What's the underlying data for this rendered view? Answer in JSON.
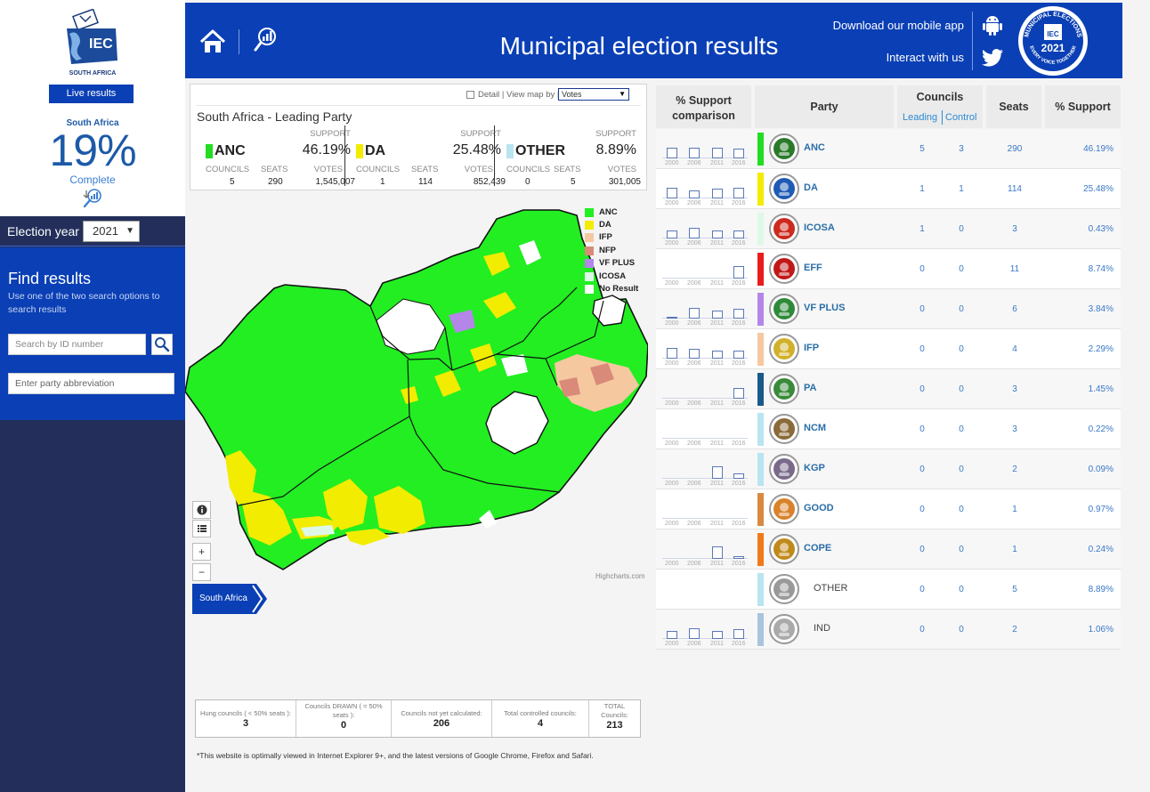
{
  "sidebar": {
    "logo_text": "IEC",
    "logo_sub": "SOUTH AFRICA",
    "live_results": "Live results",
    "region_label": "South Africa",
    "complete_pct": "19%",
    "complete_label": "Complete",
    "election_year_label": "Election year",
    "election_year": "2021",
    "find_title": "Find results",
    "find_sub": "Use one of the two search options to search results",
    "id_placeholder": "Search by ID number",
    "party_placeholder": "Enter party abbreviation"
  },
  "banner": {
    "title": "Municipal election results",
    "download_app": "Download our mobile app",
    "interact": "Interact with us",
    "badge_top": "MUNICIPAL ELECTIONS",
    "badge_year": "2021",
    "badge_bottom": "EVERY VOICE TOGETHER"
  },
  "leading_panel": {
    "detail_label": "Detail | View map by |",
    "view_by": "Votes",
    "title": "South Africa - Leading Party",
    "support_label": "SUPPORT",
    "councils_label": "COUNCILS",
    "seats_label": "SEATS",
    "votes_label": "VOTES",
    "cards": [
      {
        "name": "ANC",
        "color": "#22dd22",
        "pct": "46.19%",
        "councils": "5",
        "seats": "290",
        "votes": "1,545,007"
      },
      {
        "name": "DA",
        "color": "#f2ec00",
        "pct": "25.48%",
        "councils": "1",
        "seats": "114",
        "votes": "852,439"
      },
      {
        "name": "OTHER",
        "color": "#b9e4f0",
        "pct": "8.89%",
        "councils": "0",
        "seats": "5",
        "votes": "301,005"
      }
    ]
  },
  "legend": [
    {
      "label": "ANC",
      "color": "#22ee22"
    },
    {
      "label": "DA",
      "color": "#f2ec00"
    },
    {
      "label": "IFP",
      "color": "#f5c8a0"
    },
    {
      "label": "NFP",
      "color": "#d98a78"
    },
    {
      "label": "VF PLUS",
      "color": "#b486e8"
    },
    {
      "label": "ICOSA",
      "color": "#def8e8"
    },
    {
      "label": "No Result",
      "color": "#ffffff"
    }
  ],
  "map": {
    "credit": "Highcharts.com",
    "breadcrumb": "South Africa",
    "zoom_in": "+",
    "zoom_out": "−"
  },
  "stats": {
    "hung_label": "Hung councils ( < 50% seats ):",
    "hung": "3",
    "drawn_label": "Councils DRAWN ( = 50% seats ):",
    "drawn": "0",
    "notyet_label": "Councils not yet calculated:",
    "notyet": "206",
    "controlled_label": "Total controlled councils:",
    "controlled": "4",
    "total_label": "TOTAL Councils:",
    "total": "213"
  },
  "footnote": "*This website is optimally viewed in Internet Explorer 9+, and the latest versions of Google Chrome, Firefox and Safari.",
  "table": {
    "h_support_comp": "% Support comparison",
    "h_party": "Party",
    "h_councils": "Councils",
    "h_leading": "Leading",
    "h_control": "Control",
    "h_seats": "Seats",
    "h_support": "% Support",
    "years": [
      "2000",
      "2006",
      "2011",
      "2016"
    ],
    "rows": [
      {
        "party": "ANC",
        "color": "#22dd22",
        "leading": "5",
        "control": "3",
        "seats": "290",
        "support": "46.19%",
        "logo": "#2a7a2a",
        "spark": [
          0.4,
          0.4,
          0.4,
          0.35
        ]
      },
      {
        "party": "DA",
        "color": "#f2ec00",
        "leading": "1",
        "control": "1",
        "seats": "114",
        "support": "25.48%",
        "logo": "#1f5bb5",
        "spark": [
          0.4,
          0.3,
          0.35,
          0.4
        ]
      },
      {
        "party": "ICOSA",
        "color": "#def8e8",
        "leading": "1",
        "control": "0",
        "seats": "3",
        "support": "0.43%",
        "logo": "#cc2a1e",
        "spark": [
          0.3,
          0.4,
          0.3,
          0.3
        ]
      },
      {
        "party": "EFF",
        "color": "#e81c1c",
        "leading": "0",
        "control": "0",
        "seats": "11",
        "support": "8.74%",
        "logo": "#c01818",
        "spark": [
          0,
          0,
          0,
          0.45
        ]
      },
      {
        "party": "VF PLUS",
        "color": "#b486e8",
        "leading": "0",
        "control": "0",
        "seats": "6",
        "support": "3.84%",
        "logo": "#2e8a3a",
        "spark": [
          0.05,
          0.4,
          0.3,
          0.35
        ]
      },
      {
        "party": "IFP",
        "color": "#f5c8a0",
        "leading": "0",
        "control": "0",
        "seats": "4",
        "support": "2.29%",
        "logo": "#d1b02a",
        "spark": [
          0.4,
          0.35,
          0.3,
          0.3
        ]
      },
      {
        "party": "PA",
        "color": "#1a5a8a",
        "leading": "0",
        "control": "0",
        "seats": "3",
        "support": "1.45%",
        "logo": "#3a8a3a",
        "spark": [
          0,
          0,
          0,
          0.4
        ]
      },
      {
        "party": "NCM",
        "color": "#b9e4f0",
        "leading": "0",
        "control": "0",
        "seats": "3",
        "support": "0.22%",
        "logo": "#8a6a3a",
        "spark": [
          0,
          0,
          0,
          0
        ]
      },
      {
        "party": "KGP",
        "color": "#b9e4f0",
        "leading": "0",
        "control": "0",
        "seats": "2",
        "support": "0.09%",
        "logo": "#7a6a8a",
        "spark": [
          0,
          0,
          0.45,
          0.2
        ]
      },
      {
        "party": "GOOD",
        "color": "#d98a40",
        "leading": "0",
        "control": "0",
        "seats": "1",
        "support": "0.97%",
        "logo": "#d9822a",
        "spark": [
          0,
          0,
          0,
          0
        ]
      },
      {
        "party": "COPE",
        "color": "#f07a1a",
        "leading": "0",
        "control": "0",
        "seats": "1",
        "support": "0.24%",
        "logo": "#c08a1a",
        "spark": [
          0,
          0,
          0.45,
          0.1
        ]
      },
      {
        "party": "OTHER",
        "color": "#b9e4f0",
        "leading": "0",
        "control": "0",
        "seats": "5",
        "support": "8.89%",
        "logo": "#999999",
        "spark": null
      },
      {
        "party": "IND",
        "color": "#a9c4dc",
        "leading": "0",
        "control": "0",
        "seats": "2",
        "support": "1.06%",
        "logo": "#aaaaaa",
        "spark": [
          0.3,
          0.4,
          0.3,
          0.35
        ]
      }
    ]
  }
}
